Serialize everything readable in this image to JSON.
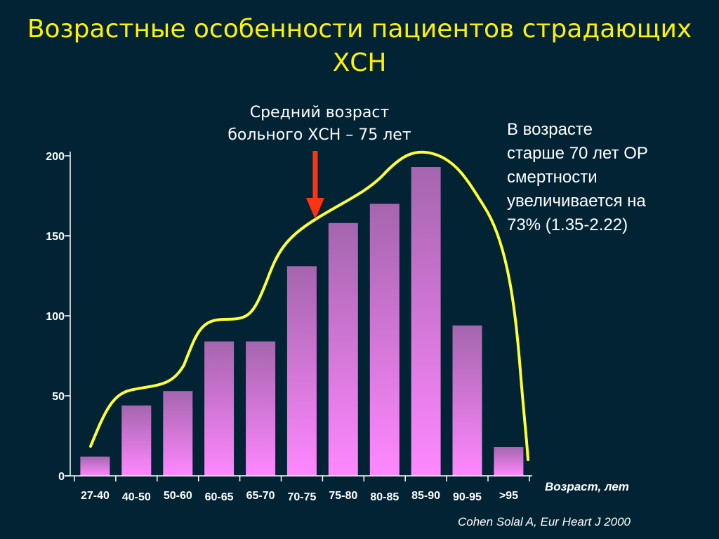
{
  "title": {
    "line1": "Возрастные особенности пациентов страдающих",
    "line2": "ХСН"
  },
  "annotation_mean": {
    "line1": "Средний возраст",
    "line2": "больного ХСН – 75 лет"
  },
  "annotation_risk": {
    "line1": "В возрасте",
    "line2": "старше 70 лет ОР",
    "line3": "смертности",
    "line4": "увеличивается на",
    "line5": "73% (1.35-2.22)"
  },
  "source": "Cohen Solal A, Eur Heart J 2000",
  "colors": {
    "background": "#022334",
    "title": "#FFF200",
    "bar_top": "#A565AE",
    "bar_bottom": "#FF88FF",
    "curve": "#FFFF33",
    "arrow": "#FF3311",
    "axis": "#FFFFFF"
  },
  "chart_data": {
    "type": "bar",
    "xlabel": "Возраст, лет",
    "ylabel": "",
    "categories": [
      "27-40",
      "40-50",
      "50-60",
      "60-65",
      "65-70",
      "70-75",
      "75-80",
      "80-85",
      "85-90",
      "90-95",
      ">95"
    ],
    "values": [
      12,
      44,
      53,
      84,
      84,
      131,
      158,
      170,
      193,
      94,
      18
    ],
    "ylim": [
      0,
      200
    ],
    "yticks": [
      0,
      50,
      100,
      150,
      200
    ],
    "grid": false,
    "legend": "none",
    "overlay": "trend curve along bar tops",
    "marker": "arrow pointing at 70-75"
  }
}
